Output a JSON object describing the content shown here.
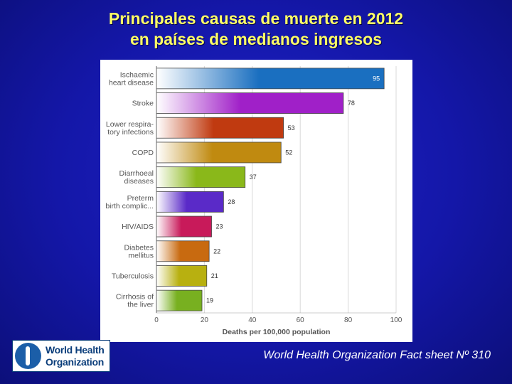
{
  "title": {
    "line1": "Principales causas de muerte en 2012",
    "line2": "en países de medianos ingresos"
  },
  "source": "World Health Organization Fact sheet Nº 310",
  "logo": {
    "line1": "World Health",
    "line2": "Organization"
  },
  "colors": {
    "background": "#1417a8",
    "title": "#ffff66",
    "bars": [
      "#1a6fc0",
      "#a020c8",
      "#c03a10",
      "#c08a10",
      "#8ab81a",
      "#5a2ac8",
      "#c81a5a",
      "#c86a10",
      "#b8b010",
      "#78b020"
    ]
  },
  "chart_data": {
    "type": "bar",
    "orientation": "horizontal",
    "categories": [
      [
        "Ischaemic",
        "heart disease"
      ],
      [
        "Stroke"
      ],
      [
        "Lower respira-",
        "tory infections"
      ],
      [
        "COPD"
      ],
      [
        "Diarrhoeal",
        "diseases"
      ],
      [
        "Preterm",
        "birth complic..."
      ],
      [
        "HIV/AIDS"
      ],
      [
        "Diabetes",
        "mellitus"
      ],
      [
        "Tuberculosis"
      ],
      [
        "Cirrhosis of",
        "the liver"
      ]
    ],
    "values": [
      95,
      78,
      53,
      52,
      37,
      28,
      23,
      22,
      21,
      19
    ],
    "xlabel": "Deaths per 100,000 population",
    "xlim": [
      0,
      100
    ],
    "xticks": [
      0,
      20,
      40,
      60,
      80,
      100
    ],
    "grid": true
  }
}
